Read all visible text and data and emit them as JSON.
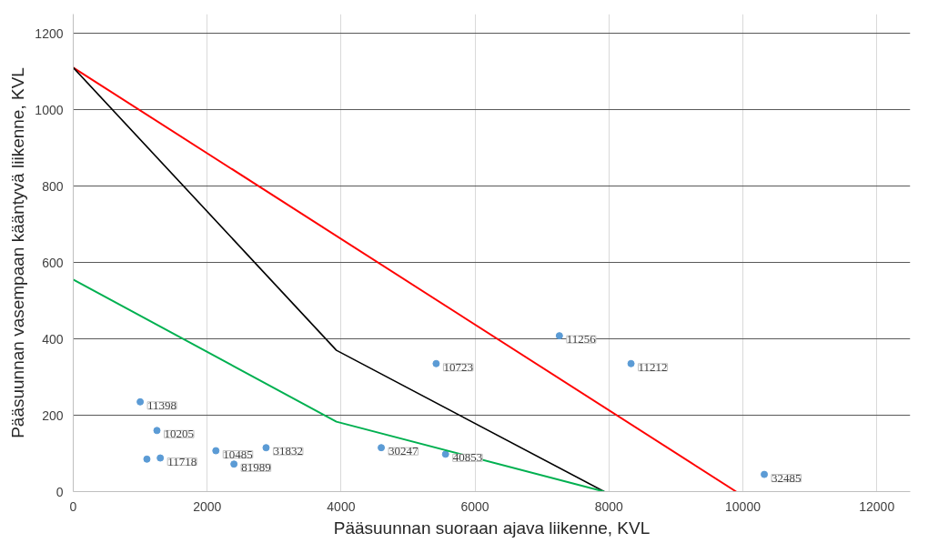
{
  "chart_data": {
    "type": "scatter",
    "xlabel": "Pääsuunnan suoraan ajava liikenne, KVL",
    "ylabel": "Pääsuunnan vasempaan kääntyvä liikenne, KVL",
    "xlim": [
      0,
      12500
    ],
    "ylim": [
      0,
      1250
    ],
    "xticks": [
      0,
      2000,
      4000,
      6000,
      8000,
      10000,
      12000
    ],
    "yticks": [
      0,
      200,
      400,
      600,
      800,
      1000,
      1200
    ],
    "grid": true,
    "series": [
      {
        "color": "#5b9bd5",
        "marker": "circle",
        "x": [
          1000,
          1250,
          1100,
          1300,
          2130,
          2880,
          2400,
          4600,
          5560,
          7260,
          5420,
          8330,
          10320
        ],
        "values": [
          235,
          160,
          85,
          88,
          107,
          115,
          72,
          115,
          98,
          408,
          335,
          335,
          45
        ]
      },
      {
        "type": "line",
        "marker": "none",
        "color": "#ff0000",
        "x": [
          0,
          9900
        ],
        "values": [
          1110,
          0
        ]
      },
      {
        "type": "line",
        "marker": "none",
        "color": "#000000",
        "x": [
          0,
          3930,
          7930
        ],
        "values": [
          1110,
          370,
          0
        ]
      },
      {
        "type": "line",
        "marker": "none",
        "color": "#00b050",
        "x": [
          0,
          3930,
          7930
        ],
        "values": [
          555,
          183,
          0
        ]
      }
    ],
    "annotations": [
      {
        "text": "11398",
        "x": 1000,
        "y": 235
      },
      {
        "text": "10205",
        "x": 1250,
        "y": 160
      },
      {
        "text": "11718",
        "x": 1300,
        "y": 88
      },
      {
        "text": "10485",
        "x": 2130,
        "y": 107
      },
      {
        "text": "31832",
        "x": 2880,
        "y": 115
      },
      {
        "text": "81989",
        "x": 2400,
        "y": 72
      },
      {
        "text": "30247",
        "x": 4600,
        "y": 115
      },
      {
        "text": "40853",
        "x": 5560,
        "y": 98
      },
      {
        "text": "11256",
        "x": 7260,
        "y": 408
      },
      {
        "text": "10723",
        "x": 5420,
        "y": 335
      },
      {
        "text": "11212",
        "x": 8330,
        "y": 335
      },
      {
        "text": "32485",
        "x": 10320,
        "y": 45
      }
    ]
  }
}
